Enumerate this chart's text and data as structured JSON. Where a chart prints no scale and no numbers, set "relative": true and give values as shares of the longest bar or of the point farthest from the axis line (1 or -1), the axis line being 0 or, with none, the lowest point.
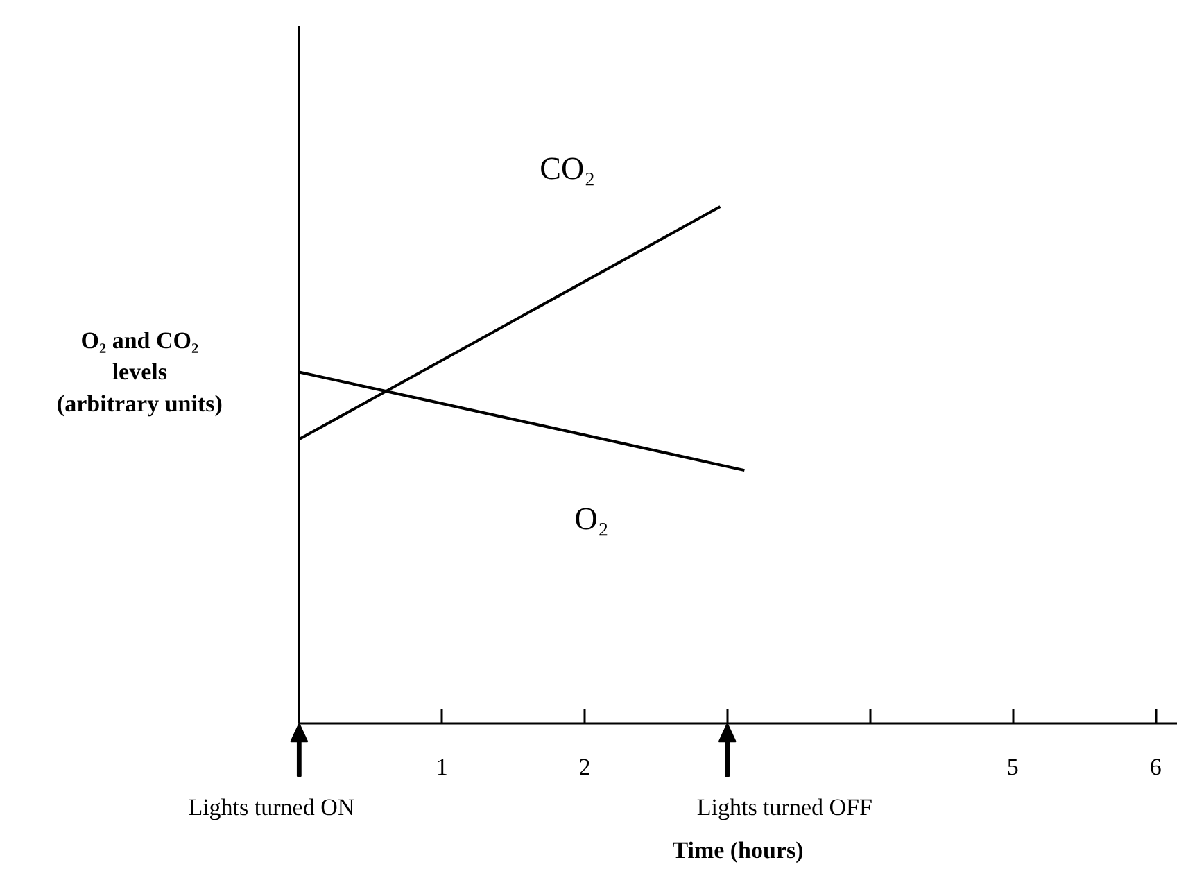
{
  "chart_data": {
    "type": "line",
    "relative": true,
    "xlabel": "Time (hours)",
    "ylabel": "O₂ and CO₂\nlevels\n(arbitrary units)",
    "xlim": [
      0,
      6.15
    ],
    "xticks": [
      {
        "value": 0,
        "label": null
      },
      1,
      2,
      {
        "value": 3,
        "label": null
      },
      {
        "value": 4,
        "label": null
      },
      5,
      6
    ],
    "series": [
      {
        "name": "CO₂",
        "color": "#000000",
        "x": [
          0,
          2.95
        ],
        "values": [
          0.55,
          1
        ]
      },
      {
        "name": "O₂",
        "color": "#000000",
        "x": [
          0,
          3.12
        ],
        "values": [
          0.68,
          0.49
        ]
      }
    ],
    "ref_lines": [
      {
        "axis": "x",
        "value": 0,
        "label": "Lights turned ON"
      },
      {
        "axis": "x",
        "value": 3,
        "label": "Lights turned OFF"
      }
    ],
    "grid": false
  }
}
